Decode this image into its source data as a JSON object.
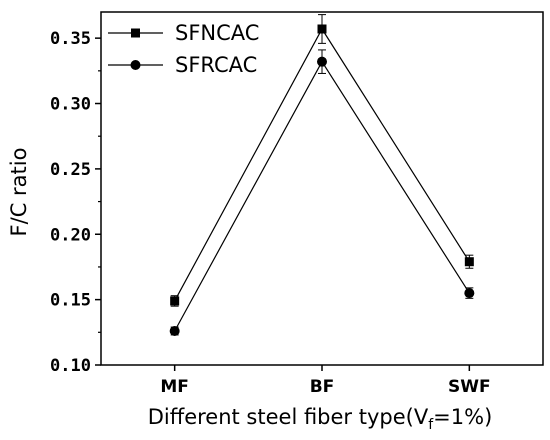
{
  "chart_data": {
    "type": "line",
    "categories": [
      "MF",
      "BF",
      "SWF"
    ],
    "series": [
      {
        "name": "SFNCAC",
        "marker": "square",
        "values": [
          0.149,
          0.357,
          0.179
        ],
        "errors": [
          0.004,
          0.011,
          0.005
        ]
      },
      {
        "name": "SFRCAC",
        "marker": "circle",
        "values": [
          0.126,
          0.332,
          0.155
        ],
        "errors": [
          0.003,
          0.009,
          0.004
        ]
      }
    ],
    "yticks": [
      "0.10",
      "0.15",
      "0.20",
      "0.25",
      "0.30",
      "0.35"
    ],
    "ylim": [
      0.1,
      0.37
    ],
    "ylabel": "F/C ratio",
    "xlabel_prefix": "Different steel fiber type(V",
    "xlabel_sub": "f",
    "xlabel_suffix": "=1%)",
    "legend_position": "top-left",
    "grid": false,
    "line_color": "#000000"
  }
}
